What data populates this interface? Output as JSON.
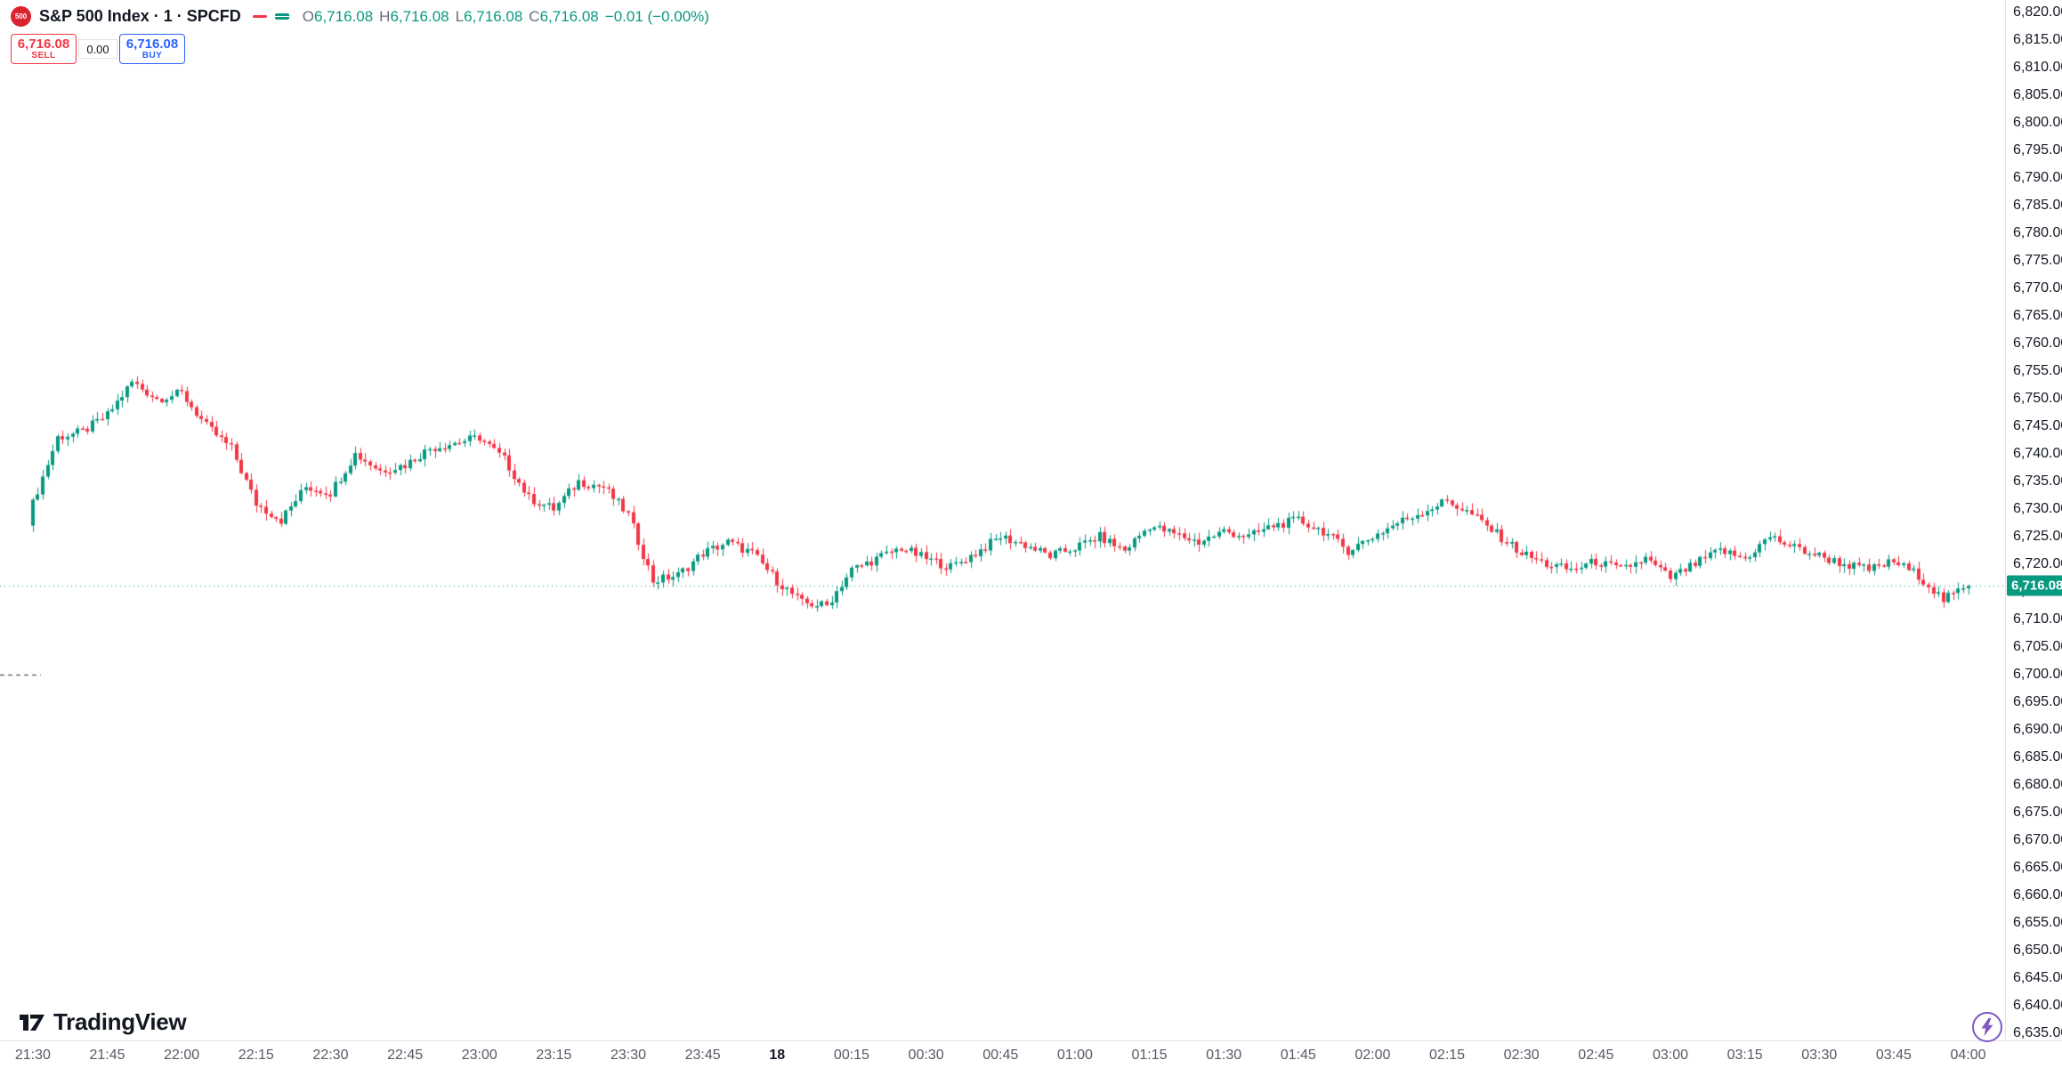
{
  "header": {
    "symbol": {
      "logo_text": "500",
      "title": "S&P 500 Index · 1 · SPCFD"
    },
    "ohlc": {
      "o_label": "O",
      "o": "6,716.08",
      "h_label": "H",
      "h": "6,716.08",
      "l_label": "L",
      "l": "6,716.08",
      "c_label": "C",
      "c": "6,716.08",
      "change": "−0.01 (−0.00%)"
    }
  },
  "order_panel": {
    "sell": {
      "price": "6,716.08",
      "label": "SELL"
    },
    "spread": "0.00",
    "buy": {
      "price": "6,716.08",
      "label": "BUY"
    }
  },
  "price_axis": {
    "last_price_label": "6,716.08"
  },
  "footer": {
    "brand": "TradingView"
  },
  "chart_data": {
    "type": "candlestick",
    "title": "S&P 500 Index · 1 · SPCFD",
    "symbol": "S&P 500 Index",
    "interval": "1",
    "exchange": "SPCFD",
    "last_price": 6716.08,
    "change": -0.01,
    "change_pct": "-0.00%",
    "session_high": 6755,
    "session_low": 6710.5,
    "prev_close_level": 6700,
    "y_axis": {
      "min": 6635,
      "max": 6820,
      "step": 5
    },
    "x_labels": [
      "21:30",
      "21:45",
      "22:00",
      "22:15",
      "22:30",
      "22:45",
      "23:00",
      "23:15",
      "23:30",
      "23:45",
      "18",
      "00:15",
      "00:30",
      "00:45",
      "01:00",
      "01:15",
      "01:30",
      "01:45",
      "02:00",
      "02:15",
      "02:30",
      "02:45",
      "03:00",
      "03:15",
      "03:30",
      "03:45",
      "04:00"
    ],
    "bold_x_label": "18",
    "minutes_per_label": 15,
    "candle_interval_min": 1,
    "total_minutes": 391,
    "first_open": 6727,
    "anchor_interval_min": 5,
    "close_anchors_5min": [
      6731,
      6743,
      6744,
      6747,
      6753,
      6750,
      6751,
      6745,
      6741,
      6731,
      6728,
      6734,
      6733,
      6740,
      6737,
      6738,
      6741,
      6742,
      6743,
      6739,
      6732,
      6730,
      6735,
      6734,
      6729,
      6717,
      6718,
      6722,
      6724,
      6722,
      6717,
      6713,
      6712.5,
      6719,
      6721,
      6723,
      6721,
      6719.5,
      6722,
      6725,
      6723.5,
      6721.5,
      6723,
      6725,
      6722.5,
      6727,
      6725.5,
      6724,
      6726,
      6725,
      6727,
      6728,
      6726,
      6722.5,
      6725,
      6727.5,
      6729.5,
      6731.5,
      6729,
      6725.5,
      6722,
      6720,
      6719,
      6720.5,
      6719,
      6721,
      6717.5,
      6720,
      6722.5,
      6721,
      6725,
      6723,
      6721.5,
      6720,
      6719,
      6720.5,
      6718,
      6713.5,
      6716.08
    ],
    "colors": {
      "up": "#089981",
      "down": "#f23645",
      "sell": "#f23645",
      "buy": "#2962ff",
      "last_price_line": "#089981",
      "prev_close_line": "#363a45",
      "text_dark": "#131722",
      "lightning": "#7e57c2"
    },
    "grid": "off",
    "legend_position": "top-left"
  }
}
